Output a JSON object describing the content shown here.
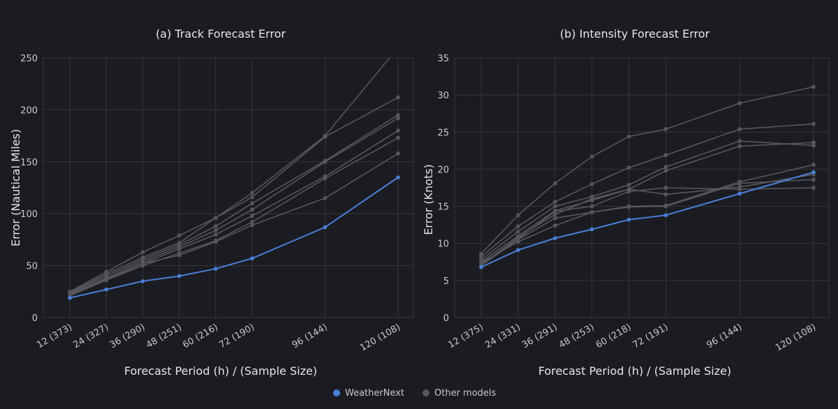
{
  "colors": {
    "background": "#1b1c21",
    "grid": "#34363d",
    "weathernext": "#4a7fd8",
    "other": "#55575c"
  },
  "legend": {
    "items": [
      "WeatherNext",
      "Other models"
    ]
  },
  "chart_data": [
    {
      "type": "line",
      "title": "(a) Track Forecast Error",
      "xlabel": "Forecast Period (h) / (Sample Size)",
      "ylabel": "Error (Nautical Miles)",
      "x": [
        12,
        24,
        36,
        48,
        60,
        72,
        96,
        120
      ],
      "tick_labels": [
        "12 (373)",
        "24 (327)",
        "36 (290)",
        "48 (251)",
        "60 (216)",
        "72 (190)",
        "96 (144)",
        "120 (108)"
      ],
      "xlim": [
        12,
        120
      ],
      "ylim": [
        0,
        250
      ],
      "yticks": [
        0,
        50,
        100,
        150,
        200,
        250
      ],
      "series": [
        {
          "name": "WeatherNext",
          "highlight": true,
          "values": [
            19,
            27,
            35,
            40,
            47,
            57,
            87,
            135
          ]
        },
        {
          "name": "Other models",
          "values": [
            25,
            44,
            63,
            79,
            96,
            120,
            175,
            260
          ]
        },
        {
          "name": "Other models",
          "values": [
            24,
            42,
            58,
            72,
            96,
            116,
            174,
            212
          ]
        },
        {
          "name": "Other models",
          "values": [
            24,
            40,
            56,
            70,
            88,
            110,
            151,
            195
          ]
        },
        {
          "name": "Other models",
          "values": [
            23,
            38,
            54,
            68,
            84,
            104,
            150,
            192
          ]
        },
        {
          "name": "Other models",
          "values": [
            22,
            37,
            52,
            66,
            80,
            98,
            136,
            180
          ]
        },
        {
          "name": "Other models",
          "values": [
            21,
            36,
            50,
            62,
            74,
            92,
            134,
            173
          ]
        },
        {
          "name": "Other models",
          "values": [
            22,
            36,
            52,
            60,
            73,
            89,
            115,
            158
          ]
        }
      ]
    },
    {
      "type": "line",
      "title": "(b) Intensity Forecast Error",
      "xlabel": "Forecast Period (h) / (Sample Size)",
      "ylabel": "Error (Knots)",
      "x": [
        12,
        24,
        36,
        48,
        60,
        72,
        96,
        120
      ],
      "tick_labels": [
        "12 (375)",
        "24 (331)",
        "36 (291)",
        "48 (253)",
        "60 (218)",
        "72 (191)",
        "96 (144)",
        "120 (108)"
      ],
      "xlim": [
        12,
        120
      ],
      "ylim": [
        0,
        35
      ],
      "yticks": [
        0,
        5,
        10,
        15,
        20,
        25,
        30,
        35
      ],
      "series": [
        {
          "name": "WeatherNext",
          "highlight": true,
          "values": [
            6.8,
            9.1,
            10.7,
            11.9,
            13.2,
            13.8,
            16.7,
            19.6
          ]
        },
        {
          "name": "Other models",
          "values": [
            8.6,
            13.8,
            18.1,
            21.7,
            24.4,
            25.4,
            28.9,
            31.1
          ]
        },
        {
          "name": "Other models",
          "values": [
            8.2,
            12.3,
            15.6,
            18.0,
            20.2,
            21.9,
            25.4,
            26.1
          ]
        },
        {
          "name": "Other models",
          "values": [
            7.8,
            11.6,
            15.0,
            16.3,
            17.9,
            20.3,
            23.8,
            23.2
          ]
        },
        {
          "name": "Other models",
          "values": [
            7.5,
            11.0,
            14.4,
            15.8,
            17.3,
            19.8,
            23.1,
            23.6
          ]
        },
        {
          "name": "Other models",
          "values": [
            7.2,
            10.6,
            14.3,
            15.0,
            17.0,
            17.5,
            17.3,
            17.5
          ]
        },
        {
          "name": "Other models",
          "values": [
            7.4,
            10.2,
            12.4,
            14.2,
            15.0,
            15.1,
            18.3,
            20.6
          ]
        },
        {
          "name": "Other models",
          "values": [
            7.0,
            10.5,
            13.4,
            14.2,
            14.9,
            15.0,
            18.1,
            18.6
          ]
        },
        {
          "name": "Other models",
          "values": [
            7.1,
            10.8,
            13.9,
            16.0,
            17.3,
            16.6,
            17.6,
            19.3
          ]
        }
      ]
    }
  ]
}
